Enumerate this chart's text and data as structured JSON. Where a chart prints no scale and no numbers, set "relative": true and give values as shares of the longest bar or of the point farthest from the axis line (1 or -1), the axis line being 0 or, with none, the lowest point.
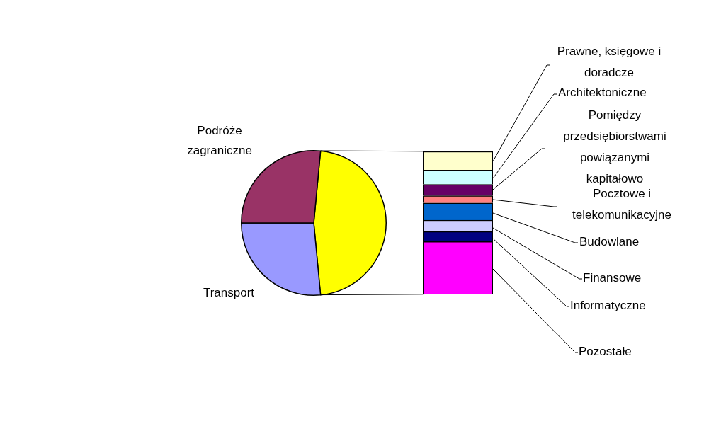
{
  "chart_data": [
    {
      "type": "pie",
      "categories": [
        null,
        "Transport",
        "Podróże zagraniczne"
      ],
      "values": [
        47,
        26.5,
        26.5
      ],
      "colors": [
        "#ffff00",
        "#9999ff",
        "#993366"
      ]
    },
    {
      "type": "bar",
      "stacked": true,
      "relative": true,
      "categories": [
        null
      ],
      "series": [
        {
          "name": "Pozostałe",
          "color": "#ff00ff",
          "values": [
            0.37
          ]
        },
        {
          "name": "Informatyczne",
          "color": "#000080",
          "values": [
            0.07
          ]
        },
        {
          "name": "Finansowe",
          "color": "#ccccff",
          "values": [
            0.08
          ]
        },
        {
          "name": "Budowlane",
          "color": "#0066cc",
          "values": [
            0.12
          ]
        },
        {
          "name": "Pocztowe i telekomunikacyjne",
          "color": "#ff8080",
          "values": [
            0.05
          ]
        },
        {
          "name": "Pomiędzy przedsiębiorstwami powiązanymi kapitałowo",
          "color": "#660066",
          "values": [
            0.08
          ]
        },
        {
          "name": "Architektoniczne",
          "color": "#ccffff",
          "values": [
            0.1
          ]
        },
        {
          "name": "Prawne, księgowe i doradcze",
          "color": "#ffffcc",
          "values": [
            0.13
          ]
        }
      ]
    }
  ]
}
